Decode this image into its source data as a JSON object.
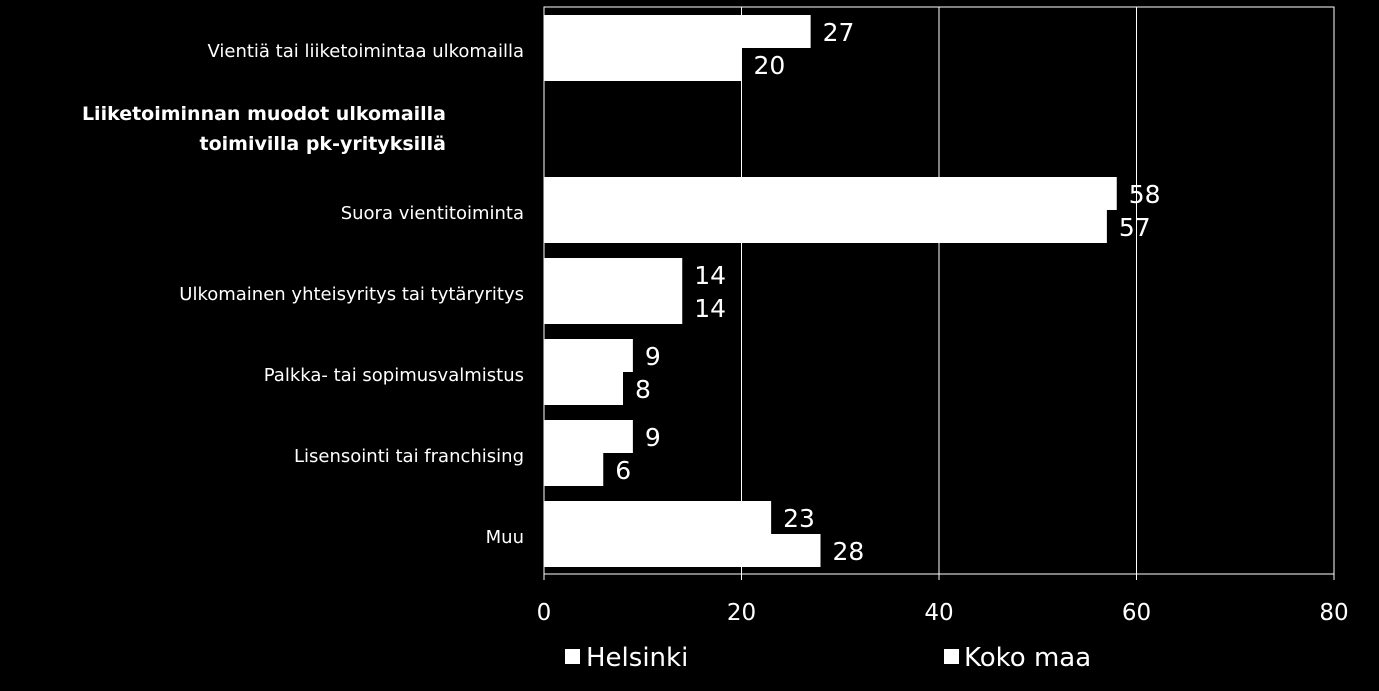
{
  "colors": {
    "background": "#000000",
    "bar": "#ffffff",
    "text": "#ffffff",
    "grid": "#ffffff"
  },
  "chart_data": {
    "type": "bar",
    "orientation": "horizontal",
    "section_heading": [
      "Liiketoiminnan muodot ulkomailla",
      "toimivilla pk-yrityksillä"
    ],
    "categories": [
      "Vientiä tai liiketoimintaa ulkomailla",
      "",
      "Suora vientitoiminta",
      "Ulkomainen yhteisyritys tai tytäryritys",
      "Palkka- tai sopimusvalmistus",
      "Lisensointi tai franchising",
      "Muu"
    ],
    "series": [
      {
        "name": "Helsinki",
        "values": [
          27,
          null,
          58,
          14,
          9,
          9,
          23
        ]
      },
      {
        "name": "Koko maa",
        "values": [
          20,
          null,
          57,
          14,
          8,
          6,
          28
        ]
      }
    ],
    "xlim": [
      0,
      80
    ],
    "xticks": [
      "0",
      "20",
      "40",
      "60",
      "80"
    ],
    "grid": true,
    "legend_position": "bottom"
  }
}
